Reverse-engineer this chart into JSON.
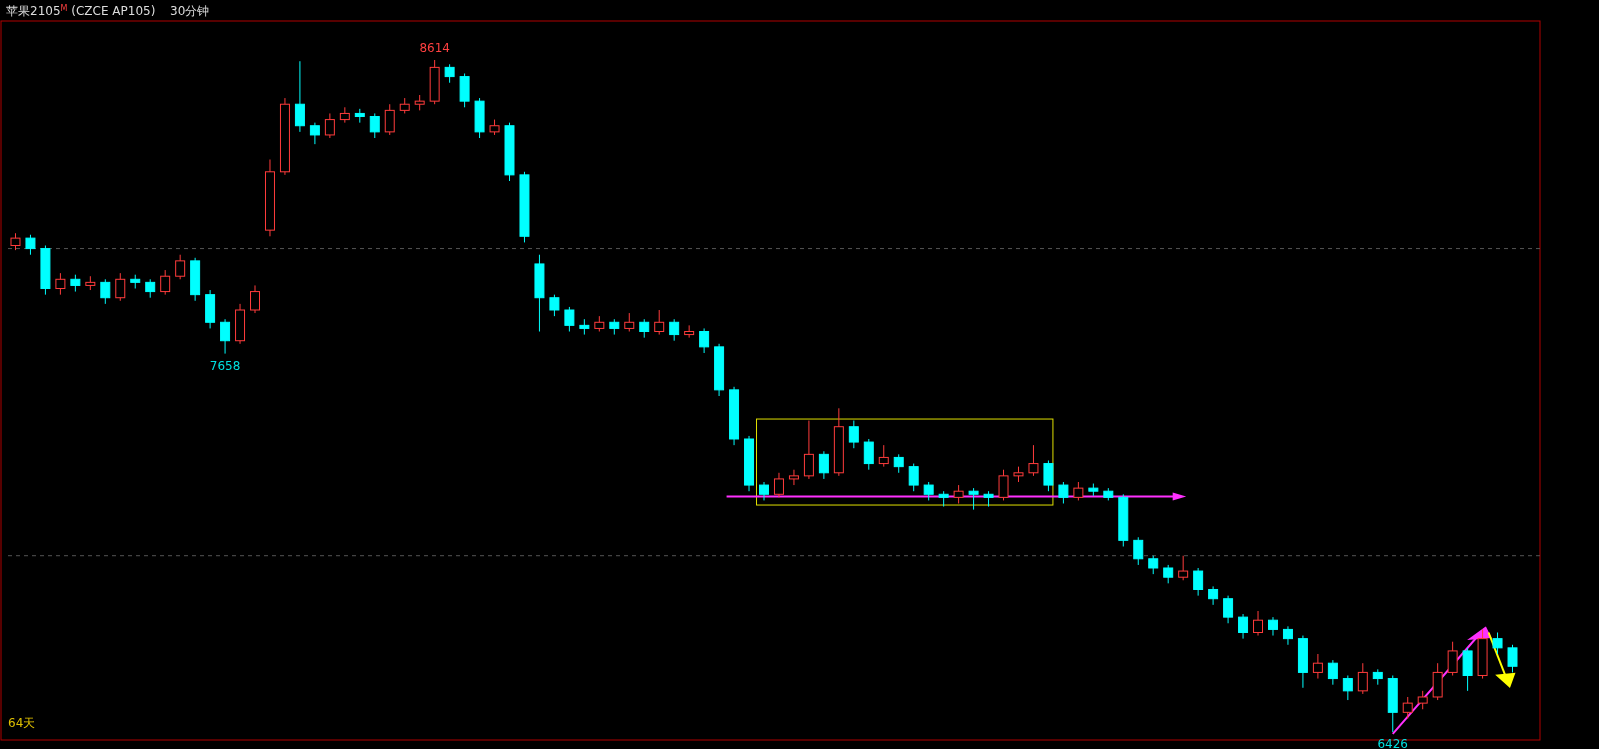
{
  "chart_data": {
    "type": "candlestick",
    "title": "苹果2105$^{M}$ (CZCE AP105)",
    "subtitle": "30分钟",
    "annotations": [
      {
        "text": "8614",
        "y": 8614
      },
      {
        "text": "7658",
        "y": 7658
      },
      {
        "text": "6426",
        "y": 6426
      },
      "64天"
    ],
    "grid": "y",
    "yticks": [
      {
        "value": 8000,
        "label": null
      },
      {
        "value": 7000,
        "label": null
      }
    ],
    "colors": [
      "#ff3c3c",
      "#00ffff",
      "#00ffff",
      "#ff3c3c",
      "#00ffff",
      "#ff3c3c",
      "#00ffff",
      "#ff3c3c",
      "#00ffff",
      "#00ffff",
      "#ff3c3c",
      "#ff3c3c",
      "#00ffff",
      "#00ffff",
      "#00ffff",
      "#ff3c3c",
      "#ff3c3c",
      "#ff3c3c",
      "#ff3c3c",
      "#00ffff",
      "#00ffff",
      "#ff3c3c",
      "#ff3c3c",
      "#00ffff",
      "#00ffff",
      "#ff3c3c",
      "#ff3c3c",
      "#ff3c3c",
      "#ff3c3c",
      "#00ffff",
      "#00ffff",
      "#00ffff",
      "#ff3c3c",
      "#00ffff",
      "#00ffff",
      "#00ffff",
      "#00ffff",
      "#00ffff",
      "#00ffff",
      "#ff3c3c",
      "#00ffff",
      "#ff3c3c",
      "#00ffff",
      "#ff3c3c",
      "#00ffff",
      "#ff3c3c",
      "#00ffff",
      "#00ffff",
      "#00ffff",
      "#00ffff",
      "#00ffff",
      "#ff3c3c",
      "#ff3c3c",
      "#ff3c3c",
      "#00ffff",
      "#ff3c3c",
      "#00ffff",
      "#00ffff",
      "#ff3c3c",
      "#00ffff",
      "#00ffff",
      "#00ffff",
      "#00ffff",
      "#ff3c3c",
      "#00ffff",
      "#00ffff",
      "#ff3c3c",
      "#ff3c3c",
      "#ff3c3c",
      "#00ffff",
      "#00ffff",
      "#ff3c3c",
      "#00ffff",
      "#00ffff",
      "#00ffff",
      "#00ffff",
      "#00ffff",
      "#00ffff",
      "#ff3c3c",
      "#00ffff",
      "#00ffff",
      "#00ffff",
      "#00ffff",
      "#ff3c3c",
      "#00ffff",
      "#00ffff",
      "#00ffff",
      "#ff3c3c",
      "#00ffff",
      "#00ffff",
      "#ff3c3c",
      "#00ffff",
      "#00ffff",
      "#ff3c3c",
      "#ff3c3c",
      "#ff3c3c",
      "#ff3c3c",
      "#00ffff",
      "#ff3c3c",
      "#00ffff",
      "#00ffff"
    ],
    "categories": [
      null,
      null,
      null,
      null,
      null,
      null,
      null,
      null,
      null,
      null,
      null,
      null,
      null,
      null,
      null,
      null,
      null,
      null,
      null,
      null,
      null,
      null,
      null,
      null,
      null,
      null,
      null,
      null,
      null,
      null,
      null,
      null,
      null,
      null,
      null,
      null,
      null,
      null,
      null,
      null,
      null,
      null,
      null,
      null,
      null,
      null,
      null,
      null,
      null,
      null,
      null,
      null,
      null,
      null,
      null,
      null,
      null,
      null,
      null,
      null,
      null,
      null,
      null,
      null,
      null,
      null,
      null,
      null,
      null,
      null,
      null,
      null,
      null,
      null,
      null,
      null,
      null,
      null,
      null,
      null,
      null,
      null,
      null,
      null,
      null,
      null,
      null,
      null,
      null,
      null,
      null,
      null,
      null,
      null,
      null,
      null,
      null,
      null,
      null,
      null,
      null
    ],
    "ohlc": [
      [
        8010,
        8050,
        7995,
        8034
      ],
      [
        8034,
        8045,
        7980,
        8000
      ],
      [
        8000,
        8010,
        7850,
        7870
      ],
      [
        7870,
        7920,
        7850,
        7900
      ],
      [
        7900,
        7915,
        7860,
        7880
      ],
      [
        7880,
        7910,
        7865,
        7890
      ],
      [
        7890,
        7900,
        7820,
        7840
      ],
      [
        7840,
        7920,
        7830,
        7900
      ],
      [
        7900,
        7915,
        7870,
        7890
      ],
      [
        7890,
        7900,
        7840,
        7860
      ],
      [
        7860,
        7930,
        7850,
        7910
      ],
      [
        7910,
        7980,
        7900,
        7960
      ],
      [
        7960,
        7970,
        7830,
        7850
      ],
      [
        7850,
        7865,
        7740,
        7760
      ],
      [
        7760,
        7770,
        7658,
        7700
      ],
      [
        7700,
        7820,
        7690,
        7800
      ],
      [
        7800,
        7880,
        7790,
        7860
      ],
      [
        8060,
        8290,
        8040,
        8250
      ],
      [
        8250,
        8490,
        8240,
        8470
      ],
      [
        8470,
        8610,
        8380,
        8400
      ],
      [
        8400,
        8410,
        8340,
        8370
      ],
      [
        8370,
        8440,
        8360,
        8420
      ],
      [
        8420,
        8460,
        8410,
        8440
      ],
      [
        8440,
        8455,
        8410,
        8430
      ],
      [
        8430,
        8440,
        8360,
        8380
      ],
      [
        8380,
        8470,
        8370,
        8450
      ],
      [
        8450,
        8490,
        8440,
        8470
      ],
      [
        8470,
        8500,
        8450,
        8480
      ],
      [
        8480,
        8614,
        8470,
        8590
      ],
      [
        8590,
        8600,
        8540,
        8560
      ],
      [
        8560,
        8570,
        8460,
        8480
      ],
      [
        8480,
        8490,
        8360,
        8380
      ],
      [
        8380,
        8420,
        8370,
        8400
      ],
      [
        8400,
        8410,
        8220,
        8240
      ],
      [
        8240,
        8250,
        8020,
        8040
      ],
      [
        7950,
        7980,
        7730,
        7840
      ],
      [
        7840,
        7850,
        7780,
        7800
      ],
      [
        7800,
        7810,
        7730,
        7750
      ],
      [
        7750,
        7770,
        7720,
        7740
      ],
      [
        7740,
        7780,
        7730,
        7760
      ],
      [
        7760,
        7770,
        7720,
        7740
      ],
      [
        7740,
        7790,
        7730,
        7760
      ],
      [
        7760,
        7770,
        7710,
        7730
      ],
      [
        7730,
        7800,
        7720,
        7760
      ],
      [
        7760,
        7770,
        7700,
        7720
      ],
      [
        7720,
        7750,
        7710,
        7730
      ],
      [
        7730,
        7740,
        7660,
        7680
      ],
      [
        7680,
        7690,
        7520,
        7540
      ],
      [
        7540,
        7550,
        7360,
        7380
      ],
      [
        7380,
        7390,
        7210,
        7230
      ],
      [
        7230,
        7240,
        7180,
        7200
      ],
      [
        7200,
        7270,
        7190,
        7250
      ],
      [
        7250,
        7280,
        7230,
        7260
      ],
      [
        7260,
        7440,
        7250,
        7330
      ],
      [
        7330,
        7340,
        7250,
        7270
      ],
      [
        7270,
        7480,
        7260,
        7420
      ],
      [
        7420,
        7440,
        7350,
        7370
      ],
      [
        7370,
        7380,
        7280,
        7300
      ],
      [
        7300,
        7360,
        7290,
        7320
      ],
      [
        7320,
        7330,
        7270,
        7290
      ],
      [
        7290,
        7300,
        7210,
        7230
      ],
      [
        7230,
        7240,
        7180,
        7200
      ],
      [
        7200,
        7210,
        7160,
        7190
      ],
      [
        7190,
        7230,
        7170,
        7210
      ],
      [
        7210,
        7220,
        7150,
        7200
      ],
      [
        7200,
        7210,
        7160,
        7190
      ],
      [
        7190,
        7280,
        7180,
        7260
      ],
      [
        7260,
        7290,
        7240,
        7270
      ],
      [
        7270,
        7360,
        7260,
        7300
      ],
      [
        7300,
        7310,
        7210,
        7230
      ],
      [
        7230,
        7240,
        7170,
        7190
      ],
      [
        7190,
        7240,
        7180,
        7220
      ],
      [
        7220,
        7235,
        7195,
        7210
      ],
      [
        7210,
        7220,
        7180,
        7190
      ],
      [
        7190,
        7200,
        7030,
        7050
      ],
      [
        7050,
        7060,
        6970,
        6990
      ],
      [
        6990,
        7000,
        6940,
        6960
      ],
      [
        6960,
        6970,
        6910,
        6930
      ],
      [
        6930,
        7000,
        6920,
        6950
      ],
      [
        6950,
        6960,
        6870,
        6890
      ],
      [
        6890,
        6900,
        6840,
        6860
      ],
      [
        6860,
        6870,
        6780,
        6800
      ],
      [
        6800,
        6810,
        6730,
        6750
      ],
      [
        6750,
        6820,
        6740,
        6790
      ],
      [
        6790,
        6800,
        6740,
        6760
      ],
      [
        6760,
        6770,
        6710,
        6730
      ],
      [
        6730,
        6740,
        6570,
        6620
      ],
      [
        6620,
        6680,
        6600,
        6650
      ],
      [
        6650,
        6660,
        6580,
        6600
      ],
      [
        6600,
        6610,
        6530,
        6560
      ],
      [
        6560,
        6650,
        6550,
        6620
      ],
      [
        6620,
        6630,
        6580,
        6600
      ],
      [
        6600,
        6610,
        6426,
        6490
      ],
      [
        6490,
        6540,
        6470,
        6520
      ],
      [
        6520,
        6560,
        6500,
        6540
      ],
      [
        6540,
        6650,
        6530,
        6620
      ],
      [
        6620,
        6720,
        6610,
        6690
      ],
      [
        6690,
        6700,
        6560,
        6610
      ],
      [
        6610,
        6760,
        6600,
        6730
      ],
      [
        6730,
        6750,
        6680,
        6700
      ],
      [
        6700,
        6710,
        6620,
        6640
      ]
    ]
  }
}
